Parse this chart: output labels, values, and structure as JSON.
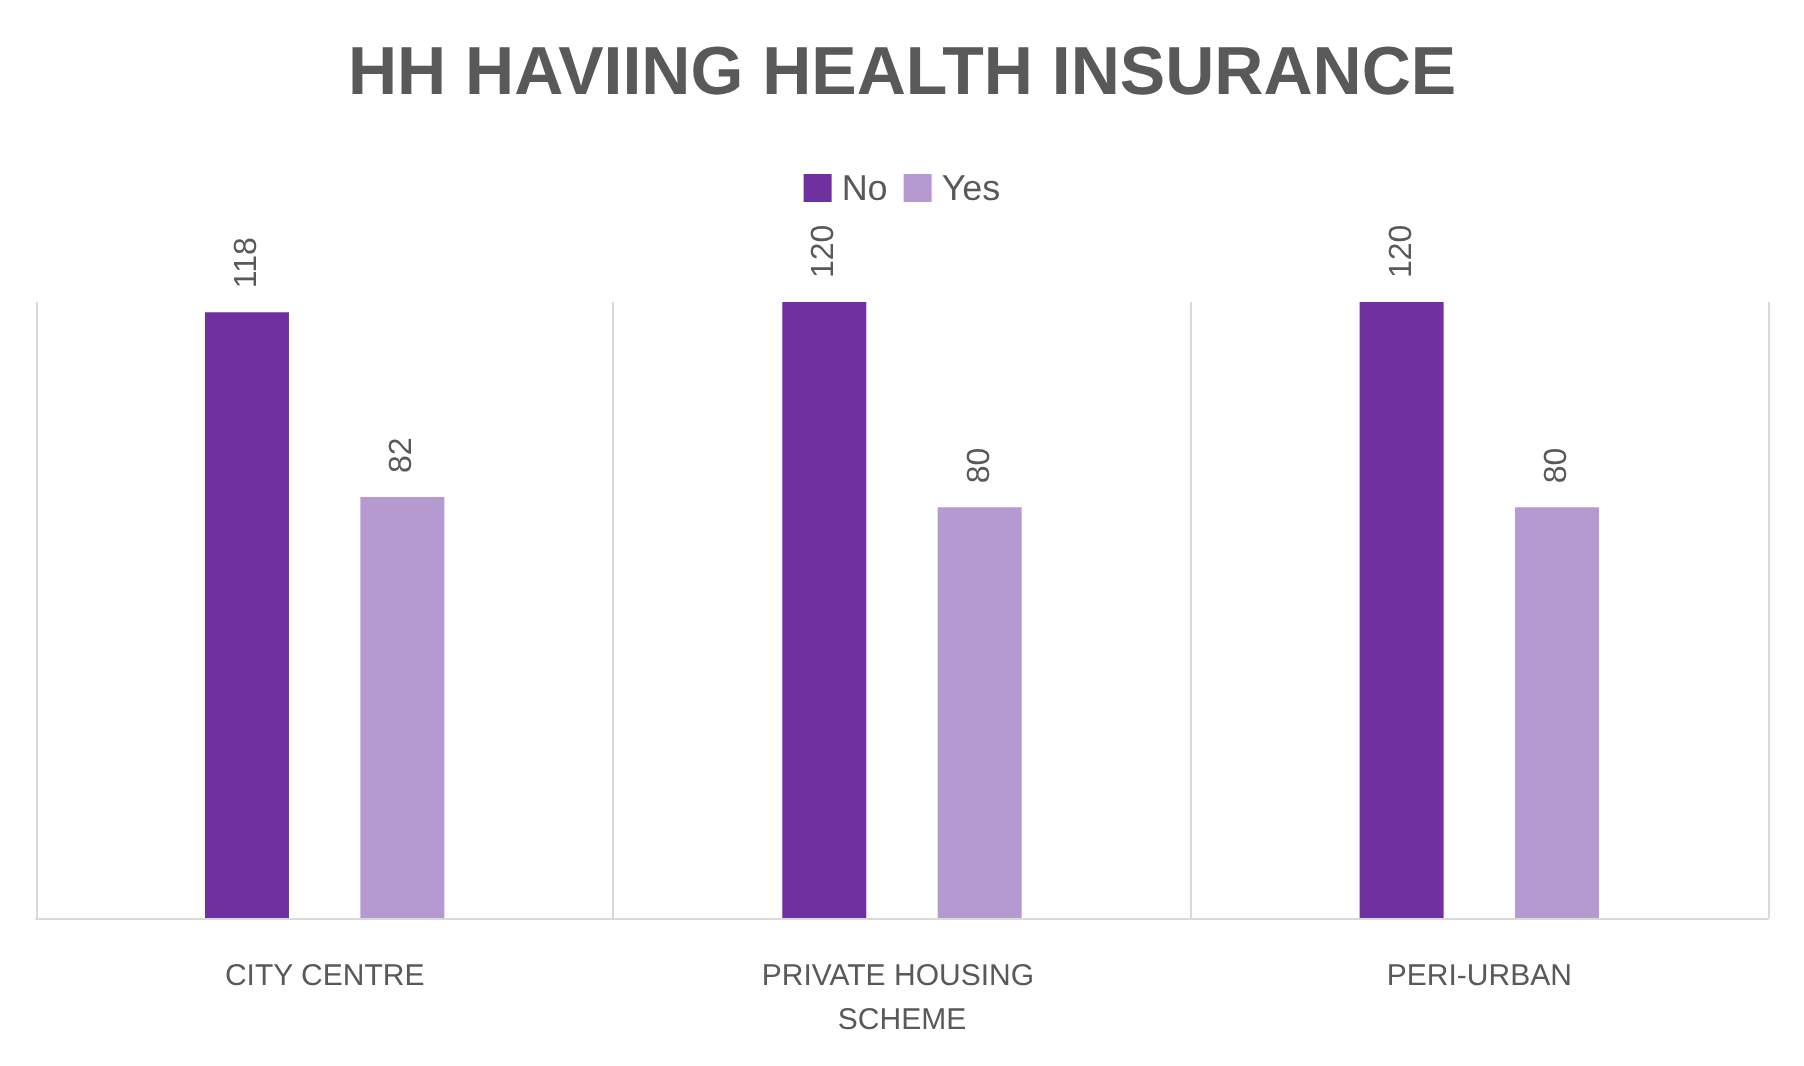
{
  "chart_data": {
    "type": "bar",
    "title": "HH HAVIING HEALTH INSURANCE",
    "categories": [
      "CITY CENTRE",
      "PRIVATE HOUSING SCHEME",
      "PERI-URBAN"
    ],
    "series": [
      {
        "name": "No",
        "color": "#7030a0",
        "values": [
          118,
          120,
          120
        ]
      },
      {
        "name": "Yes",
        "color": "#b49ad1",
        "values": [
          82,
          80,
          80
        ]
      }
    ],
    "data_labels": true,
    "grid": "x",
    "legend": "top"
  }
}
